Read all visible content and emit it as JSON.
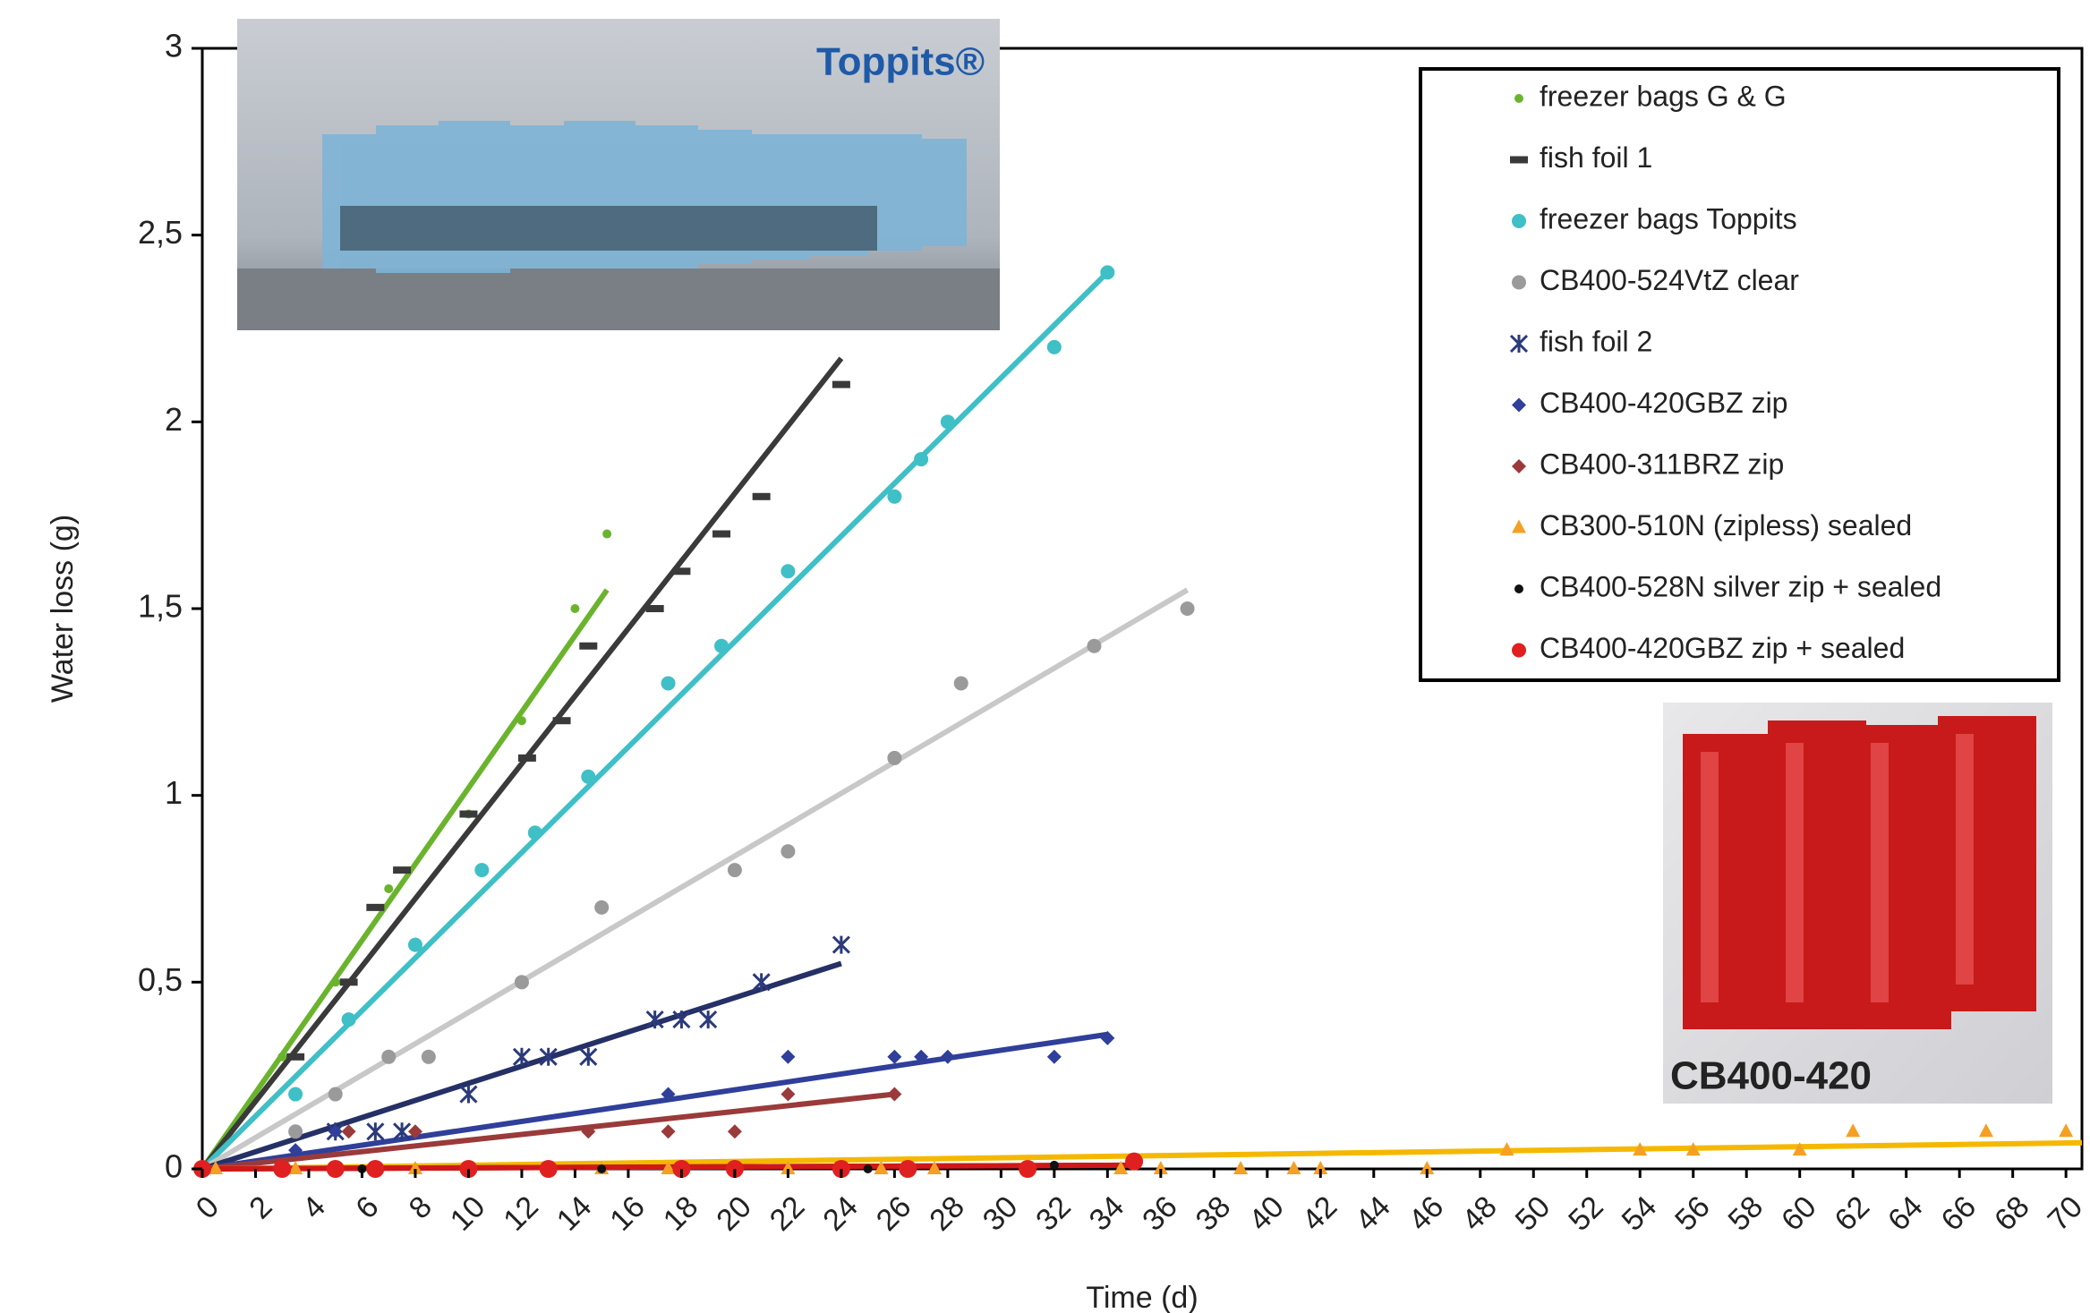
{
  "chart_data": {
    "type": "scatter",
    "x_label": "Time (d)",
    "y_label": "Water loss (g)",
    "xlim": [
      0,
      70.6
    ],
    "ylim": [
      0,
      3
    ],
    "xticks": [
      0,
      2,
      4,
      6,
      8,
      10,
      12,
      14,
      16,
      18,
      20,
      22,
      24,
      26,
      28,
      30,
      32,
      34,
      36,
      38,
      40,
      42,
      44,
      46,
      48,
      50,
      52,
      54,
      56,
      58,
      60,
      62,
      64,
      66,
      68,
      70
    ],
    "yticks": [
      0,
      {
        "value": 0.5,
        "label": "0,5"
      },
      1,
      {
        "value": 1.5,
        "label": "1,5"
      },
      2,
      {
        "value": 2.5,
        "label": "2,5"
      },
      3
    ],
    "series": [
      {
        "name": "freezer bags G & G",
        "color": "#6ab42d",
        "marker": "dot",
        "trend_color": "#6ab42d",
        "x": [
          0,
          3,
          5,
          7,
          10,
          12,
          14,
          15.2
        ],
        "values": [
          0,
          0.3,
          0.5,
          0.75,
          0.95,
          1.2,
          1.5,
          1.7
        ],
        "trend_x": [
          0,
          15.2
        ],
        "trend_y": [
          0,
          1.55
        ]
      },
      {
        "name": "fish foil 1",
        "color": "#3a3a3a",
        "marker": "dash",
        "trend_color": "#3a3a3a",
        "x": [
          3.5,
          5.5,
          6.5,
          7.5,
          10,
          12.2,
          13.5,
          14.5,
          17,
          18,
          19.5,
          21,
          24
        ],
        "values": [
          0.3,
          0.5,
          0.7,
          0.8,
          0.95,
          1.1,
          1.2,
          1.4,
          1.5,
          1.6,
          1.7,
          1.8,
          2.1
        ],
        "trend_x": [
          0,
          24
        ],
        "trend_y": [
          0,
          2.17
        ]
      },
      {
        "name": "freezer bags Toppits",
        "color": "#3fbfc6",
        "marker": "circle",
        "trend_color": "#3fbfc6",
        "x": [
          3.5,
          5.5,
          8,
          10.5,
          12.5,
          14.5,
          17.5,
          19.5,
          22,
          26,
          27,
          28,
          32,
          34
        ],
        "values": [
          0.2,
          0.4,
          0.6,
          0.8,
          0.9,
          1.05,
          1.3,
          1.4,
          1.6,
          1.8,
          1.9,
          2.0,
          2.2,
          2.4
        ],
        "trend_x": [
          0,
          34
        ],
        "trend_y": [
          0,
          2.4
        ]
      },
      {
        "name": "CB400-524VtZ clear",
        "color": "#9a9a9a",
        "marker": "circle",
        "trend_color": "#c8c8c8",
        "x": [
          3.5,
          5,
          7,
          8.5,
          12,
          15,
          20,
          22,
          26,
          28.5,
          33.5,
          37
        ],
        "values": [
          0.1,
          0.2,
          0.3,
          0.3,
          0.5,
          0.7,
          0.8,
          0.85,
          1.1,
          1.3,
          1.4,
          1.5
        ],
        "trend_x": [
          0,
          37
        ],
        "trend_y": [
          0,
          1.55
        ]
      },
      {
        "name": "fish foil 2",
        "color": "#2b3a7a",
        "marker": "asterisk",
        "trend_color": "#253066",
        "x": [
          5,
          6.5,
          7.5,
          10,
          12,
          13,
          14.5,
          17,
          18,
          19,
          21,
          24
        ],
        "values": [
          0.1,
          0.1,
          0.1,
          0.2,
          0.3,
          0.3,
          0.3,
          0.4,
          0.4,
          0.4,
          0.5,
          0.6
        ],
        "trend_x": [
          0,
          24
        ],
        "trend_y": [
          0,
          0.55
        ]
      },
      {
        "name": "CB400-420GBZ zip",
        "color": "#2f3f9a",
        "marker": "diamond",
        "trend_color": "#2f3f9a",
        "x": [
          3.5,
          5,
          17.5,
          22,
          26,
          27,
          28,
          32,
          34
        ],
        "values": [
          0.05,
          0.1,
          0.2,
          0.3,
          0.3,
          0.3,
          0.3,
          0.3,
          0.35
        ],
        "trend_x": [
          0,
          34
        ],
        "trend_y": [
          0,
          0.36
        ]
      },
      {
        "name": "CB400-311BRZ zip",
        "color": "#9a3a3a",
        "marker": "diamond",
        "trend_color": "#9a3a3a",
        "x": [
          5.5,
          8,
          14.5,
          17.5,
          20,
          22,
          26
        ],
        "values": [
          0.1,
          0.1,
          0.1,
          0.1,
          0.1,
          0.2,
          0.2
        ],
        "trend_x": [
          0,
          26
        ],
        "trend_y": [
          0,
          0.2
        ]
      },
      {
        "name": "CB300-510N (zipless) sealed",
        "color": "#f5a023",
        "marker": "triangle",
        "trend_color": "#f5b800",
        "x": [
          0.5,
          3.5,
          6.5,
          8,
          15,
          17.5,
          20,
          22,
          25.5,
          27.5,
          34.5,
          36,
          39,
          41,
          42,
          46,
          49,
          54,
          56,
          60,
          62,
          67,
          70
        ],
        "values": [
          0,
          0,
          0,
          0,
          0,
          0,
          0,
          0,
          0,
          0,
          0,
          0,
          0,
          0,
          0,
          0,
          0.05,
          0.05,
          0.05,
          0.05,
          0.1,
          0.1,
          0.1
        ],
        "trend_x": [
          0,
          70.6
        ],
        "trend_y": [
          0,
          0.07
        ]
      },
      {
        "name": "CB400-528N silver zip + sealed",
        "color": "#111111",
        "marker": "dot",
        "trend_color": "#333333",
        "x": [
          3,
          6,
          10,
          15,
          25,
          32,
          35
        ],
        "values": [
          0,
          0,
          0,
          0,
          0,
          0.01,
          0.01
        ],
        "trend_x": [
          0,
          35
        ],
        "trend_y": [
          0,
          0.01
        ]
      },
      {
        "name": "CB400-420GBZ zip + sealed",
        "color": "#e02020",
        "marker": "bigdot",
        "trend_color": "#d01818",
        "x": [
          0,
          3,
          5,
          6.5,
          10,
          13,
          18,
          20,
          24,
          26.5,
          31,
          35
        ],
        "values": [
          0,
          0,
          0,
          0,
          0,
          0,
          0,
          0,
          0,
          0,
          0,
          0.02
        ],
        "trend_x": [
          0,
          35
        ],
        "trend_y": [
          0,
          0.01
        ]
      }
    ]
  },
  "photos": [
    {
      "label": "Toppits®"
    },
    {
      "label": "CB400-420"
    }
  ]
}
